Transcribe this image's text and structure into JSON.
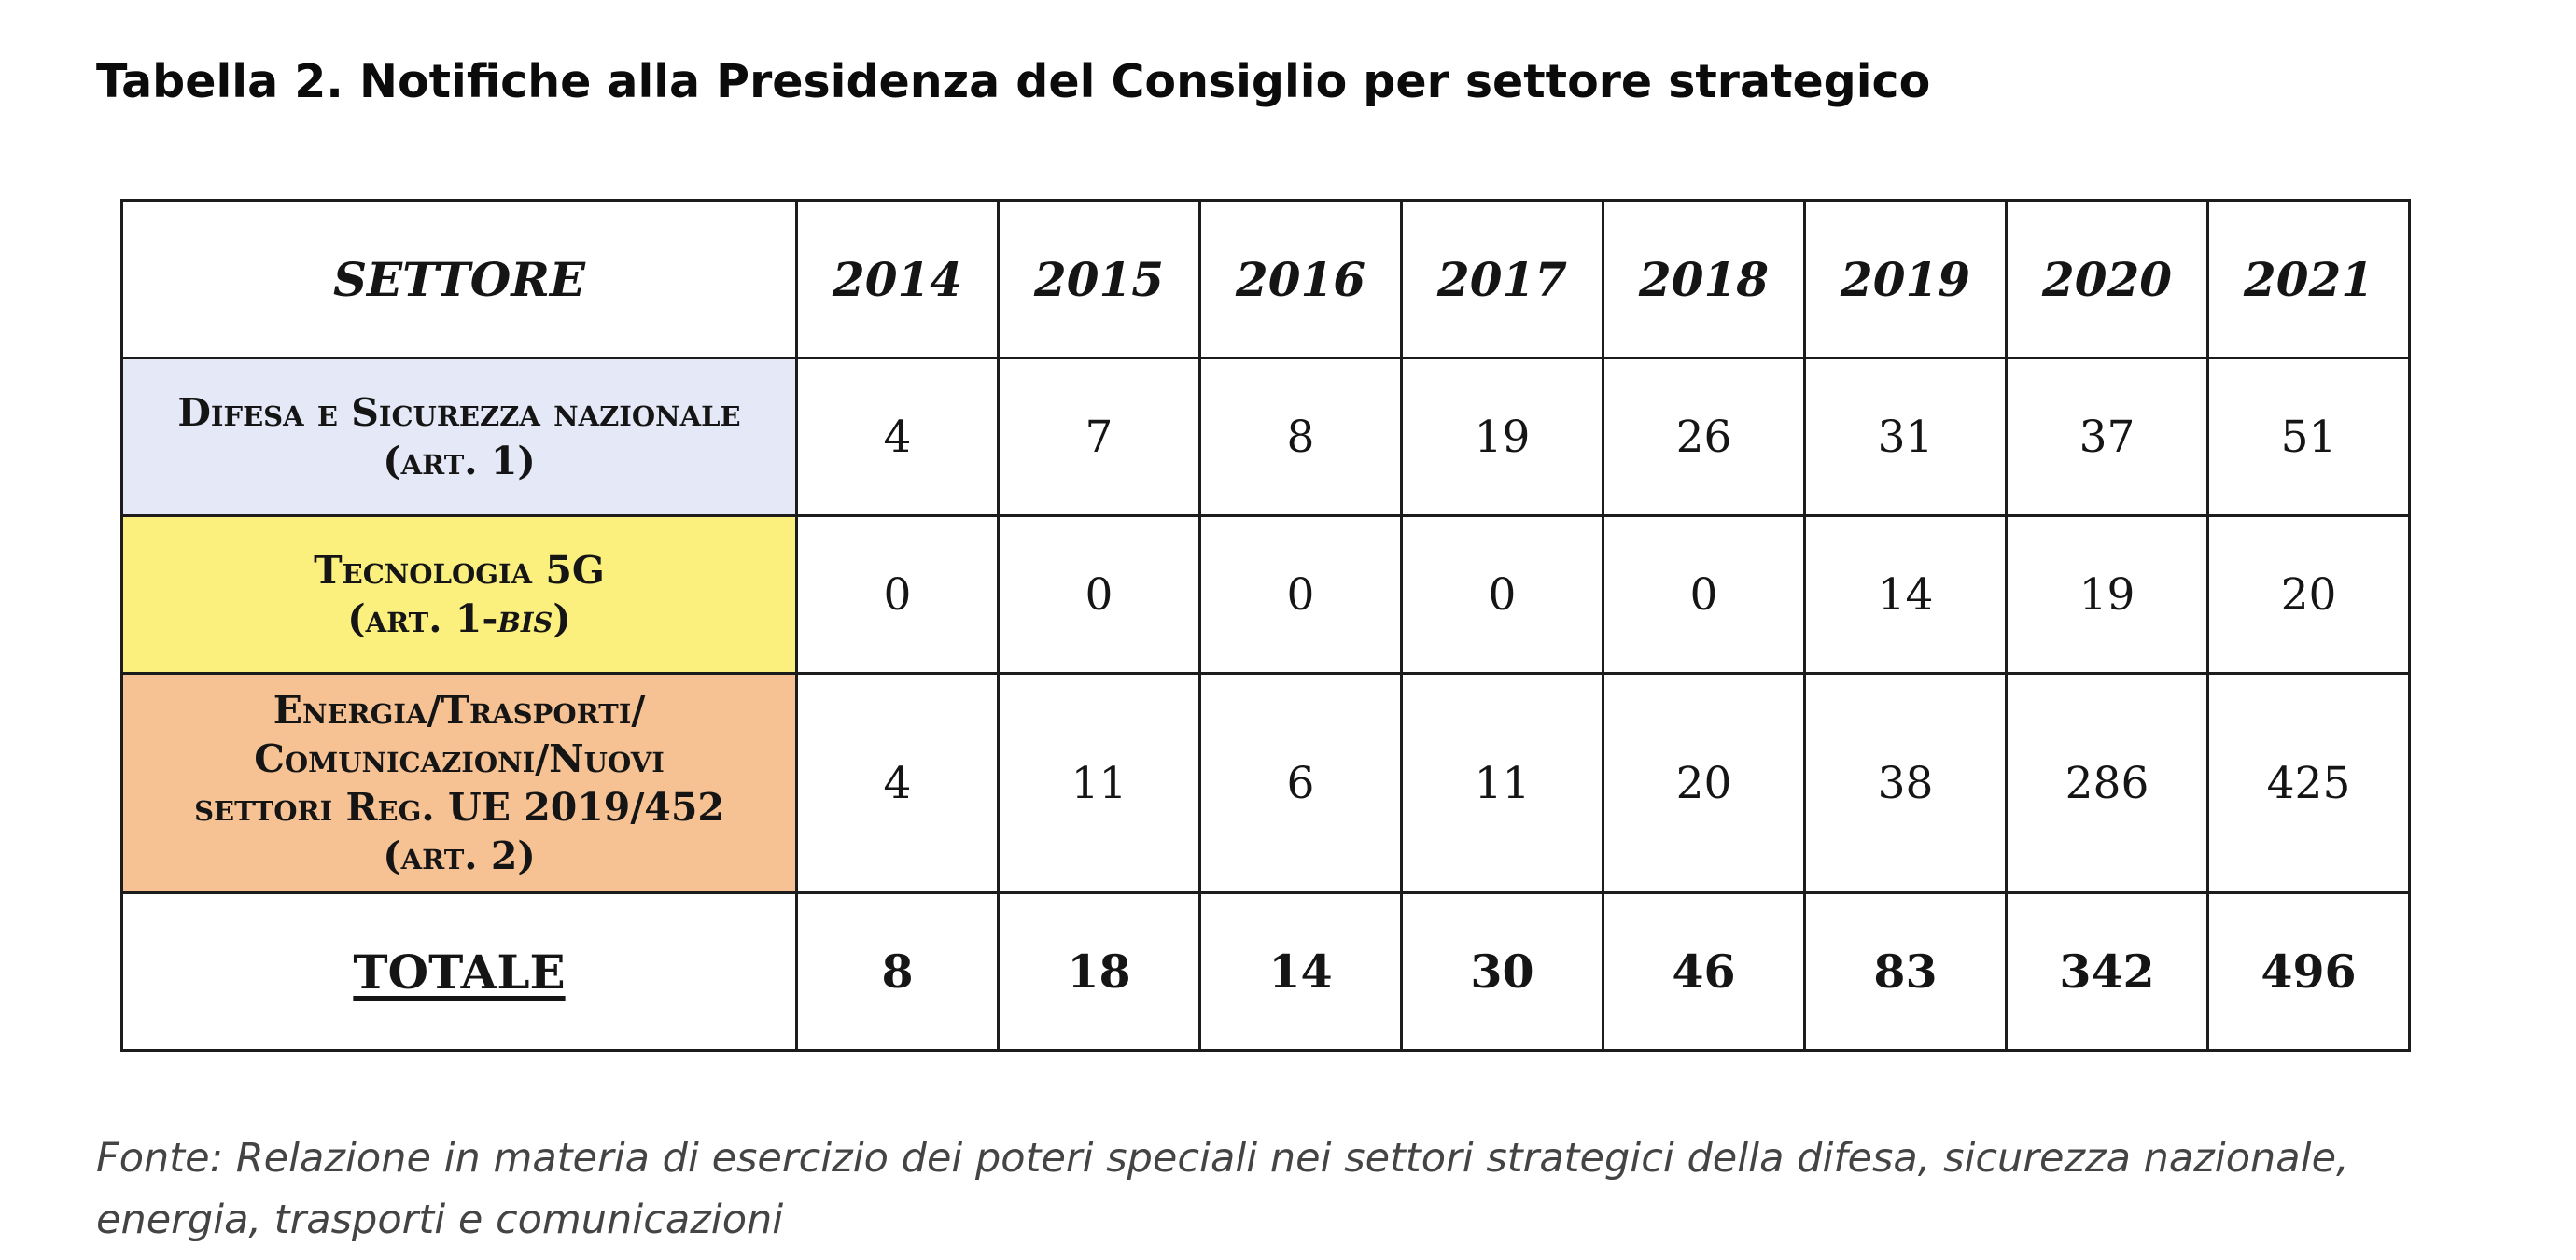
{
  "title": "Tabella 2. Notifiche alla Presidenza del Consiglio per settore strategico",
  "table": {
    "header": {
      "sector": "SETTORE",
      "years": [
        "2014",
        "2015",
        "2016",
        "2017",
        "2018",
        "2019",
        "2020",
        "2021"
      ]
    },
    "rows": [
      {
        "label_line1": "Difesa e Sicurezza nazionale",
        "label_line2": "(art. 1)",
        "color": "#e5e9f7",
        "values": [
          4,
          7,
          8,
          19,
          26,
          31,
          37,
          51
        ]
      },
      {
        "label_line1": "Tecnologia 5G",
        "label_line2_prefix": "(art. 1-",
        "label_line2_italic": "bis",
        "label_line2_suffix": ")",
        "color": "#fbf07e",
        "values": [
          0,
          0,
          0,
          0,
          0,
          14,
          19,
          20
        ]
      },
      {
        "label_line1": "Energia/Trasporti/",
        "label_line2": "Comunicazioni/Nuovi",
        "label_line3": "settori Reg. UE 2019/452",
        "label_line4": "(art. 2)",
        "color": "#f6c294",
        "values": [
          4,
          11,
          6,
          11,
          20,
          38,
          286,
          425
        ]
      }
    ],
    "total": {
      "label": "TOTALE",
      "values": [
        8,
        18,
        14,
        30,
        46,
        83,
        342,
        496
      ]
    }
  },
  "source": "Fonte: Relazione in materia di esercizio dei poteri speciali nei settori strategici della difesa, sicurezza nazionale, energia, trasporti e comunicazioni"
}
